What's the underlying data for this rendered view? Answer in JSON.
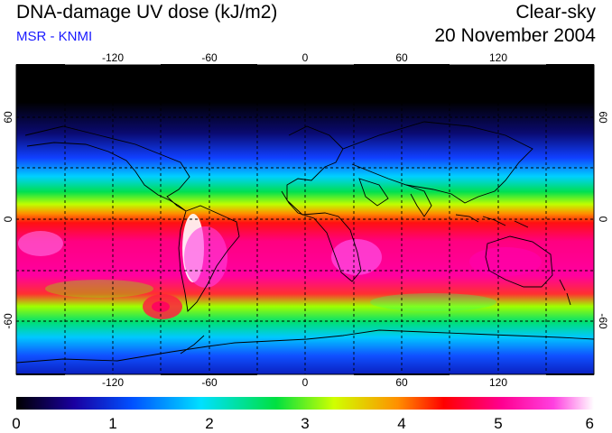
{
  "header": {
    "title": "DNA-damage UV dose (kJ/m2)",
    "subtitle": "MSR - KNMI",
    "condition": "Clear-sky",
    "date": "20 November 2004"
  },
  "colors": {
    "subtitle": "#1a1aff",
    "frame": "#000000"
  },
  "axes": {
    "lon_ticks": [
      "-120",
      "-60",
      "0",
      "60",
      "120"
    ],
    "lat_ticks": [
      "60",
      "0",
      "-60"
    ],
    "lat_ticks_right": [
      "60",
      "0",
      "-60"
    ]
  },
  "colorbar": {
    "labels": [
      "0",
      "1",
      "2",
      "3",
      "4",
      "5",
      "6"
    ],
    "min": 0,
    "max": 6,
    "stops": [
      "#000000",
      "#1a00a0",
      "#0050ff",
      "#00e0ff",
      "#00e040",
      "#d0ff00",
      "#ff9000",
      "#ff0000",
      "#ff0090",
      "#ff40e0",
      "#ffffff"
    ]
  }
}
